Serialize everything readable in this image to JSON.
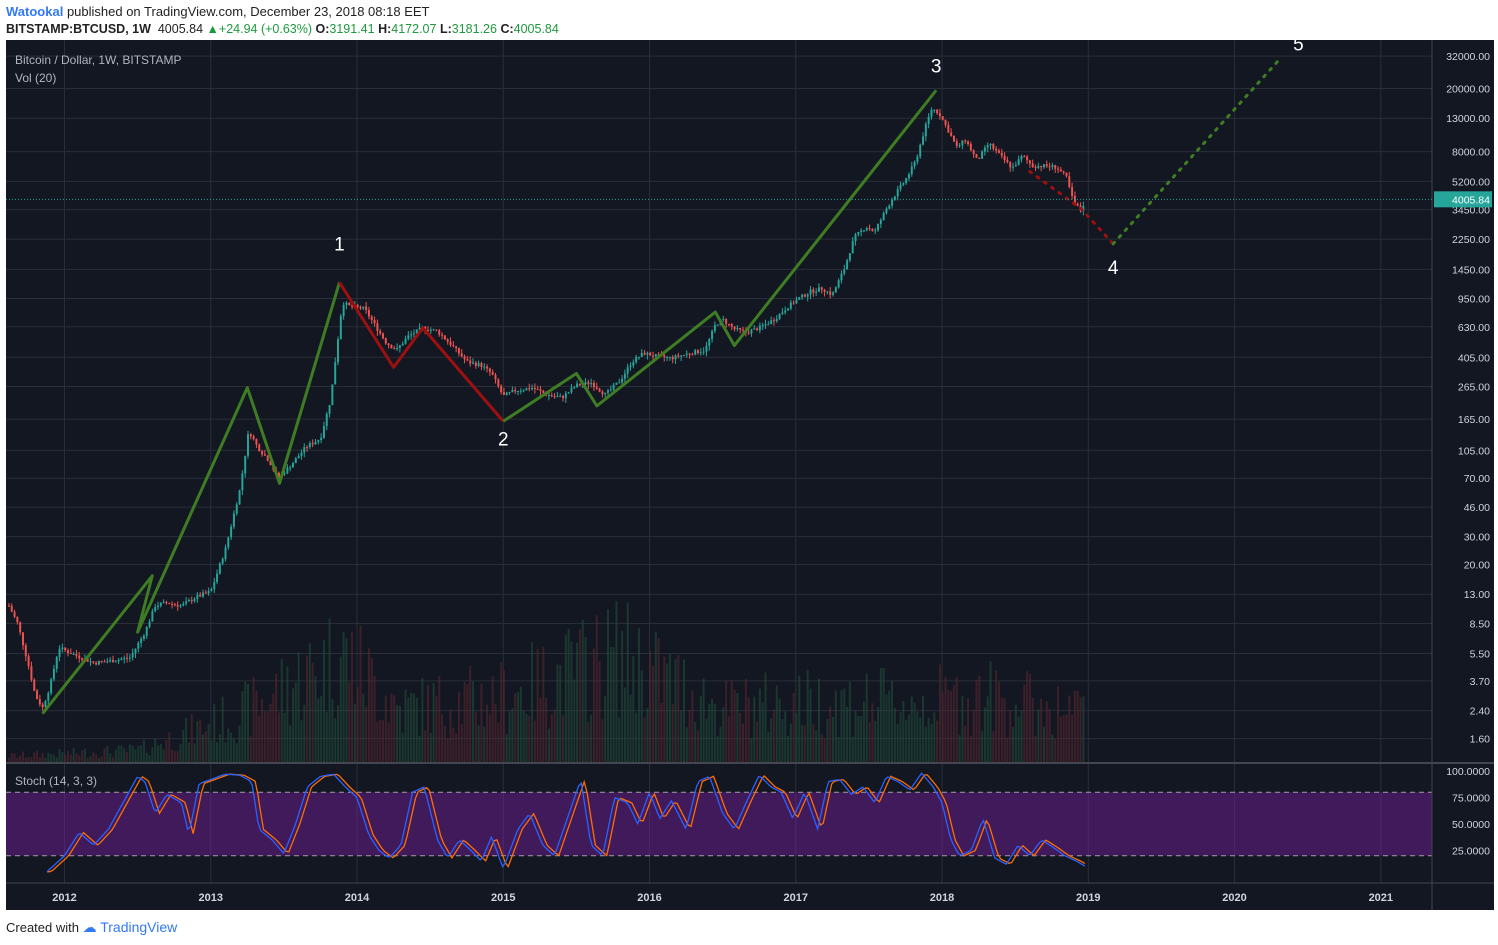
{
  "header": {
    "author": "Watookal",
    "published": "published on TradingView.com, December 23, 2018 08:18 EET",
    "symbol": "BITSTAMP:BTCUSD, 1W",
    "last": "4005.84",
    "change": "+24.94 (+0.63%)",
    "open_label": "O:",
    "open": "3191.41",
    "high_label": "H:",
    "high": "4172.07",
    "low_label": "L:",
    "low": "3181.26",
    "close_label": "C:",
    "close": "4005.84"
  },
  "legend": {
    "title": "Bitcoin / Dollar, 1W, BITSTAMP",
    "volume": "Vol (20)",
    "stoch": "Stoch (14, 3, 3)"
  },
  "footer": {
    "created_with": "Created with",
    "brand": "TradingView"
  },
  "colors": {
    "background": "#131722",
    "grid": "#2a2e39",
    "up": "#26a69a",
    "down": "#ef5350",
    "impulse": "#3e7d23",
    "correction": "#9e1010",
    "stoch_k": "#2962ff",
    "stoch_d": "#ff6d00",
    "stoch_band": "#7b1fa2",
    "price_line": "#26a69a"
  },
  "chart_data": {
    "type": "candlestick",
    "scale": "log",
    "title": "Bitcoin / Dollar, 1W, BITSTAMP",
    "last_price": 4005.84,
    "y_ticks": [
      1.6,
      2.4,
      3.7,
      5.5,
      8.5,
      13,
      20,
      30,
      46,
      70,
      105,
      165,
      265,
      405,
      630,
      950,
      1450,
      2250,
      3450,
      5200,
      8000,
      13000,
      20000,
      32000
    ],
    "y_tick_labels": [
      "1.60",
      "2.40",
      "3.70",
      "5.50",
      "8.50",
      "13.00",
      "20.00",
      "30.00",
      "46.00",
      "70.00",
      "105.00",
      "165.00",
      "265.00",
      "405.00",
      "630.00",
      "950.00",
      "1450.00",
      "2250.00",
      "3450.00",
      "5200.00",
      "8000.00",
      "13000.00",
      "20000.00",
      "32000.00"
    ],
    "x_years": [
      2012,
      2013,
      2014,
      2015,
      2016,
      2017,
      2018,
      2019,
      2020,
      2021
    ],
    "x_range": [
      2011.6,
      2021.35
    ],
    "price_path": [
      [
        2011.62,
        11
      ],
      [
        2011.68,
        8.5
      ],
      [
        2011.75,
        4.8
      ],
      [
        2011.8,
        3.0
      ],
      [
        2011.85,
        2.5
      ],
      [
        2011.9,
        3.4
      ],
      [
        2011.96,
        6.0
      ],
      [
        2012.05,
        5.5
      ],
      [
        2012.2,
        4.8
      ],
      [
        2012.35,
        5.0
      ],
      [
        2012.45,
        5.2
      ],
      [
        2012.55,
        7.5
      ],
      [
        2012.62,
        11
      ],
      [
        2012.7,
        11.5
      ],
      [
        2012.8,
        11
      ],
      [
        2012.9,
        12.5
      ],
      [
        2013.0,
        13.5
      ],
      [
        2013.1,
        25
      ],
      [
        2013.2,
        60
      ],
      [
        2013.26,
        140
      ],
      [
        2013.32,
        110
      ],
      [
        2013.4,
        90
      ],
      [
        2013.46,
        70
      ],
      [
        2013.55,
        85
      ],
      [
        2013.65,
        110
      ],
      [
        2013.75,
        125
      ],
      [
        2013.82,
        220
      ],
      [
        2013.86,
        450
      ],
      [
        2013.9,
        900
      ],
      [
        2013.95,
        850
      ],
      [
        2014.05,
        820
      ],
      [
        2014.12,
        650
      ],
      [
        2014.2,
        500
      ],
      [
        2014.27,
        450
      ],
      [
        2014.35,
        550
      ],
      [
        2014.45,
        620
      ],
      [
        2014.55,
        590
      ],
      [
        2014.65,
        480
      ],
      [
        2014.75,
        380
      ],
      [
        2014.85,
        360
      ],
      [
        2014.92,
        320
      ],
      [
        2015.0,
        230
      ],
      [
        2015.08,
        250
      ],
      [
        2015.2,
        260
      ],
      [
        2015.3,
        235
      ],
      [
        2015.4,
        225
      ],
      [
        2015.5,
        270
      ],
      [
        2015.6,
        280
      ],
      [
        2015.7,
        235
      ],
      [
        2015.8,
        290
      ],
      [
        2015.88,
        380
      ],
      [
        2015.96,
        430
      ],
      [
        2016.05,
        410
      ],
      [
        2016.15,
        400
      ],
      [
        2016.28,
        430
      ],
      [
        2016.38,
        450
      ],
      [
        2016.45,
        650
      ],
      [
        2016.5,
        700
      ],
      [
        2016.58,
        610
      ],
      [
        2016.66,
        580
      ],
      [
        2016.75,
        620
      ],
      [
        2016.85,
        700
      ],
      [
        2016.95,
        850
      ],
      [
        2017.02,
        950
      ],
      [
        2017.1,
        1050
      ],
      [
        2017.18,
        1100
      ],
      [
        2017.25,
        1000
      ],
      [
        2017.33,
        1450
      ],
      [
        2017.4,
        2300
      ],
      [
        2017.48,
        2700
      ],
      [
        2017.54,
        2500
      ],
      [
        2017.62,
        3500
      ],
      [
        2017.68,
        4300
      ],
      [
        2017.76,
        5500
      ],
      [
        2017.82,
        7000
      ],
      [
        2017.88,
        11000
      ],
      [
        2017.93,
        15000
      ],
      [
        2017.98,
        14000
      ],
      [
        2018.04,
        11000
      ],
      [
        2018.1,
        8500
      ],
      [
        2018.16,
        9500
      ],
      [
        2018.24,
        7000
      ],
      [
        2018.32,
        9000
      ],
      [
        2018.4,
        7500
      ],
      [
        2018.48,
        6300
      ],
      [
        2018.55,
        7500
      ],
      [
        2018.62,
        6500
      ],
      [
        2018.7,
        6500
      ],
      [
        2018.78,
        6400
      ],
      [
        2018.85,
        5500
      ],
      [
        2018.9,
        3800
      ],
      [
        2018.95,
        3400
      ],
      [
        2018.98,
        4005
      ]
    ],
    "volume_envelope": [
      [
        2011.6,
        0.05
      ],
      [
        2012.5,
        0.1
      ],
      [
        2013.2,
        0.4
      ],
      [
        2013.9,
        0.9
      ],
      [
        2014.3,
        0.45
      ],
      [
        2015.0,
        0.55
      ],
      [
        2015.8,
        0.9
      ],
      [
        2016.5,
        0.45
      ],
      [
        2017.0,
        0.5
      ],
      [
        2017.8,
        0.5
      ],
      [
        2018.3,
        0.55
      ],
      [
        2018.98,
        0.4
      ]
    ],
    "waves": [
      {
        "label": "",
        "style": "solid",
        "kind": "impulse",
        "points": [
          [
            2011.85,
            2.3
          ],
          [
            2012.6,
            17
          ],
          [
            2012.5,
            7.5
          ],
          [
            2013.25,
            260
          ],
          [
            2013.47,
            65
          ],
          [
            2013.88,
            1200
          ]
        ]
      },
      {
        "label": "",
        "style": "solid",
        "kind": "correction",
        "points": [
          [
            2013.88,
            1200
          ],
          [
            2014.25,
            350
          ],
          [
            2014.45,
            620
          ],
          [
            2015.0,
            160
          ]
        ]
      },
      {
        "label": "",
        "style": "solid",
        "kind": "impulse",
        "points": [
          [
            2015.0,
            160
          ],
          [
            2015.5,
            320
          ],
          [
            2015.64,
            200
          ],
          [
            2016.45,
            780
          ],
          [
            2016.58,
            480
          ],
          [
            2017.96,
            19500
          ]
        ]
      },
      {
        "label": "",
        "style": "dotted",
        "kind": "correction",
        "points": [
          [
            2018.6,
            6000
          ],
          [
            2018.95,
            3500
          ],
          [
            2019.17,
            2100
          ]
        ]
      },
      {
        "label": "",
        "style": "dotted",
        "kind": "impulse",
        "points": [
          [
            2019.17,
            2100
          ],
          [
            2020.3,
            30000
          ]
        ]
      }
    ],
    "wave_labels": [
      {
        "text": "1",
        "x": 2013.88,
        "y": 1200
      },
      {
        "text": "2",
        "x": 2015.0,
        "y": 160
      },
      {
        "text": "3",
        "x": 2017.96,
        "y": 19500
      },
      {
        "text": "4",
        "x": 2019.17,
        "y": 2100
      },
      {
        "text": "5",
        "x": 2020.3,
        "y": 30000
      }
    ],
    "stoch": {
      "params": "14, 3, 3",
      "range": [
        0,
        100
      ],
      "band": [
        20,
        80
      ],
      "ticks": [
        25,
        50,
        75,
        100
      ],
      "tick_labels": [
        "25.0000",
        "50.0000",
        "75.0000",
        "100.0000"
      ],
      "k_path": [
        [
          2011.88,
          5
        ],
        [
          2012.0,
          20
        ],
        [
          2012.1,
          42
        ],
        [
          2012.2,
          30
        ],
        [
          2012.3,
          45
        ],
        [
          2012.4,
          70
        ],
        [
          2012.5,
          95
        ],
        [
          2012.55,
          90
        ],
        [
          2012.62,
          60
        ],
        [
          2012.7,
          78
        ],
        [
          2012.8,
          70
        ],
        [
          2012.85,
          40
        ],
        [
          2012.92,
          88
        ],
        [
          2013.0,
          92
        ],
        [
          2013.1,
          97
        ],
        [
          2013.2,
          96
        ],
        [
          2013.28,
          90
        ],
        [
          2013.33,
          45
        ],
        [
          2013.42,
          35
        ],
        [
          2013.5,
          22
        ],
        [
          2013.58,
          50
        ],
        [
          2013.66,
          85
        ],
        [
          2013.75,
          95
        ],
        [
          2013.84,
          97
        ],
        [
          2013.92,
          85
        ],
        [
          2014.0,
          75
        ],
        [
          2014.08,
          40
        ],
        [
          2014.15,
          25
        ],
        [
          2014.22,
          18
        ],
        [
          2014.3,
          30
        ],
        [
          2014.38,
          80
        ],
        [
          2014.46,
          85
        ],
        [
          2014.55,
          35
        ],
        [
          2014.62,
          18
        ],
        [
          2014.7,
          35
        ],
        [
          2014.78,
          25
        ],
        [
          2014.85,
          15
        ],
        [
          2014.92,
          38
        ],
        [
          2015.0,
          8
        ],
        [
          2015.1,
          45
        ],
        [
          2015.18,
          60
        ],
        [
          2015.27,
          30
        ],
        [
          2015.35,
          20
        ],
        [
          2015.45,
          60
        ],
        [
          2015.53,
          92
        ],
        [
          2015.6,
          30
        ],
        [
          2015.68,
          20
        ],
        [
          2015.76,
          75
        ],
        [
          2015.85,
          70
        ],
        [
          2015.92,
          50
        ],
        [
          2016.0,
          80
        ],
        [
          2016.07,
          55
        ],
        [
          2016.15,
          72
        ],
        [
          2016.25,
          45
        ],
        [
          2016.33,
          90
        ],
        [
          2016.41,
          95
        ],
        [
          2016.5,
          60
        ],
        [
          2016.58,
          45
        ],
        [
          2016.66,
          70
        ],
        [
          2016.75,
          96
        ],
        [
          2016.83,
          85
        ],
        [
          2016.9,
          80
        ],
        [
          2016.98,
          55
        ],
        [
          2017.06,
          80
        ],
        [
          2017.15,
          45
        ],
        [
          2017.22,
          90
        ],
        [
          2017.3,
          92
        ],
        [
          2017.38,
          78
        ],
        [
          2017.46,
          85
        ],
        [
          2017.54,
          70
        ],
        [
          2017.62,
          95
        ],
        [
          2017.7,
          90
        ],
        [
          2017.78,
          82
        ],
        [
          2017.86,
          98
        ],
        [
          2017.94,
          85
        ],
        [
          2018.0,
          70
        ],
        [
          2018.06,
          35
        ],
        [
          2018.12,
          20
        ],
        [
          2018.2,
          25
        ],
        [
          2018.28,
          55
        ],
        [
          2018.36,
          18
        ],
        [
          2018.44,
          12
        ],
        [
          2018.52,
          30
        ],
        [
          2018.6,
          20
        ],
        [
          2018.68,
          35
        ],
        [
          2018.76,
          28
        ],
        [
          2018.84,
          20
        ],
        [
          2018.92,
          15
        ],
        [
          2018.98,
          10
        ]
      ]
    }
  }
}
